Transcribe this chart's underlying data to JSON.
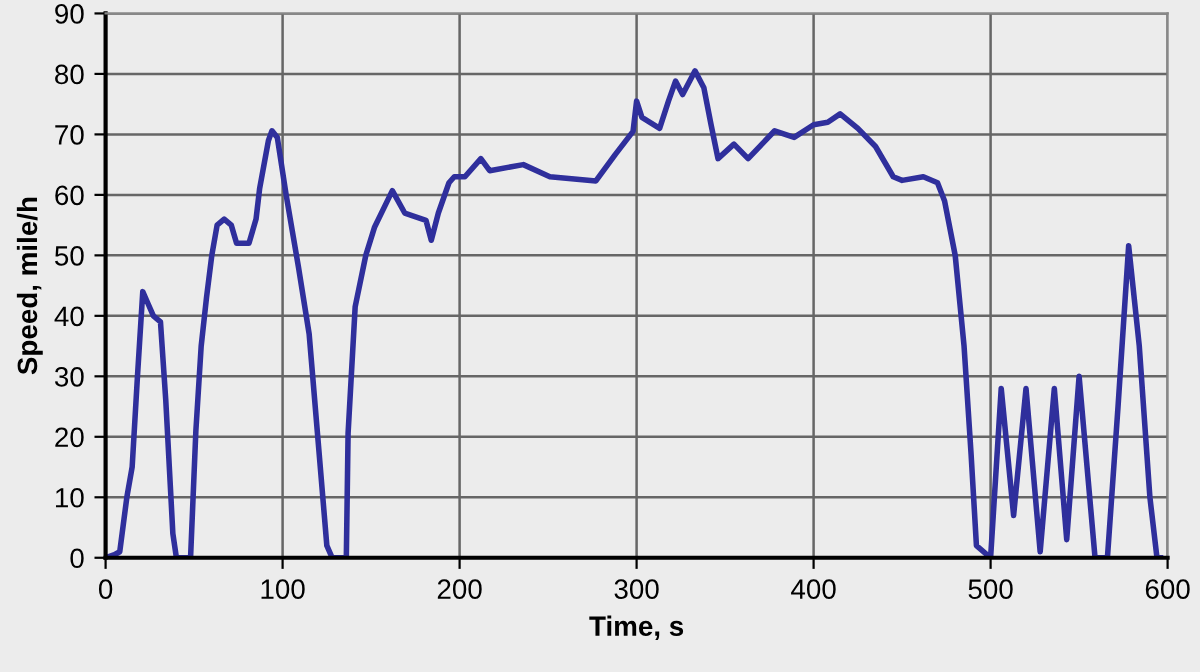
{
  "chart_data": {
    "type": "line",
    "xlabel": "Time, s",
    "ylabel": "Speed, mile/h",
    "xlim": [
      0,
      600
    ],
    "ylim": [
      0,
      90
    ],
    "xticks": [
      0,
      100,
      200,
      300,
      400,
      500,
      600
    ],
    "yticks": [
      0,
      10,
      20,
      30,
      40,
      50,
      60,
      70,
      80,
      90
    ],
    "grid": true,
    "line_style": "solid",
    "series": [
      {
        "color": "#2f2f9c",
        "x": [
          0,
          5,
          8,
          12,
          15,
          18,
          21,
          24,
          27,
          31,
          34,
          38,
          40,
          48,
          51,
          54,
          57,
          60,
          63,
          67,
          71,
          74,
          78,
          81,
          85,
          87,
          92,
          94,
          97,
          102,
          109,
          115,
          120,
          125,
          128,
          136,
          137,
          141,
          147,
          152,
          162,
          169,
          181,
          184,
          188,
          194,
          197,
          203,
          212,
          217,
          236,
          251,
          277,
          288,
          298,
          300,
          303,
          313,
          318,
          322,
          326,
          333,
          338,
          342,
          346,
          355,
          363,
          378,
          389,
          400,
          408,
          415,
          425,
          435,
          445,
          450,
          462,
          470,
          474,
          480,
          485,
          489,
          492,
          500,
          506,
          513,
          520,
          528,
          536,
          543,
          550,
          559,
          566,
          572,
          578,
          584,
          590,
          594,
          596
        ],
        "values": [
          0,
          0.5,
          1,
          10,
          15,
          30,
          44,
          42,
          40,
          39,
          26,
          4,
          0,
          0,
          21,
          35,
          43,
          50,
          55,
          56,
          55,
          52,
          52,
          52,
          56,
          61,
          69,
          70.6,
          69.5,
          60,
          48,
          37,
          19.5,
          2,
          0,
          0,
          20.6,
          41.5,
          50,
          54.7,
          60.7,
          57,
          55.8,
          52.5,
          57,
          62,
          63,
          63,
          66,
          64,
          65,
          63,
          62.3,
          66.7,
          70.5,
          75.5,
          72.8,
          71,
          75.5,
          78.8,
          76.6,
          80.5,
          77.7,
          71.7,
          66,
          68.4,
          66,
          70.6,
          69.5,
          71.6,
          72,
          73.4,
          71,
          68,
          63,
          62.4,
          63,
          62,
          59,
          50,
          35,
          17,
          2,
          0,
          28,
          7,
          28,
          1,
          28,
          3,
          30,
          0,
          0,
          25,
          51.6,
          35,
          10,
          0,
          0
        ]
      }
    ]
  }
}
